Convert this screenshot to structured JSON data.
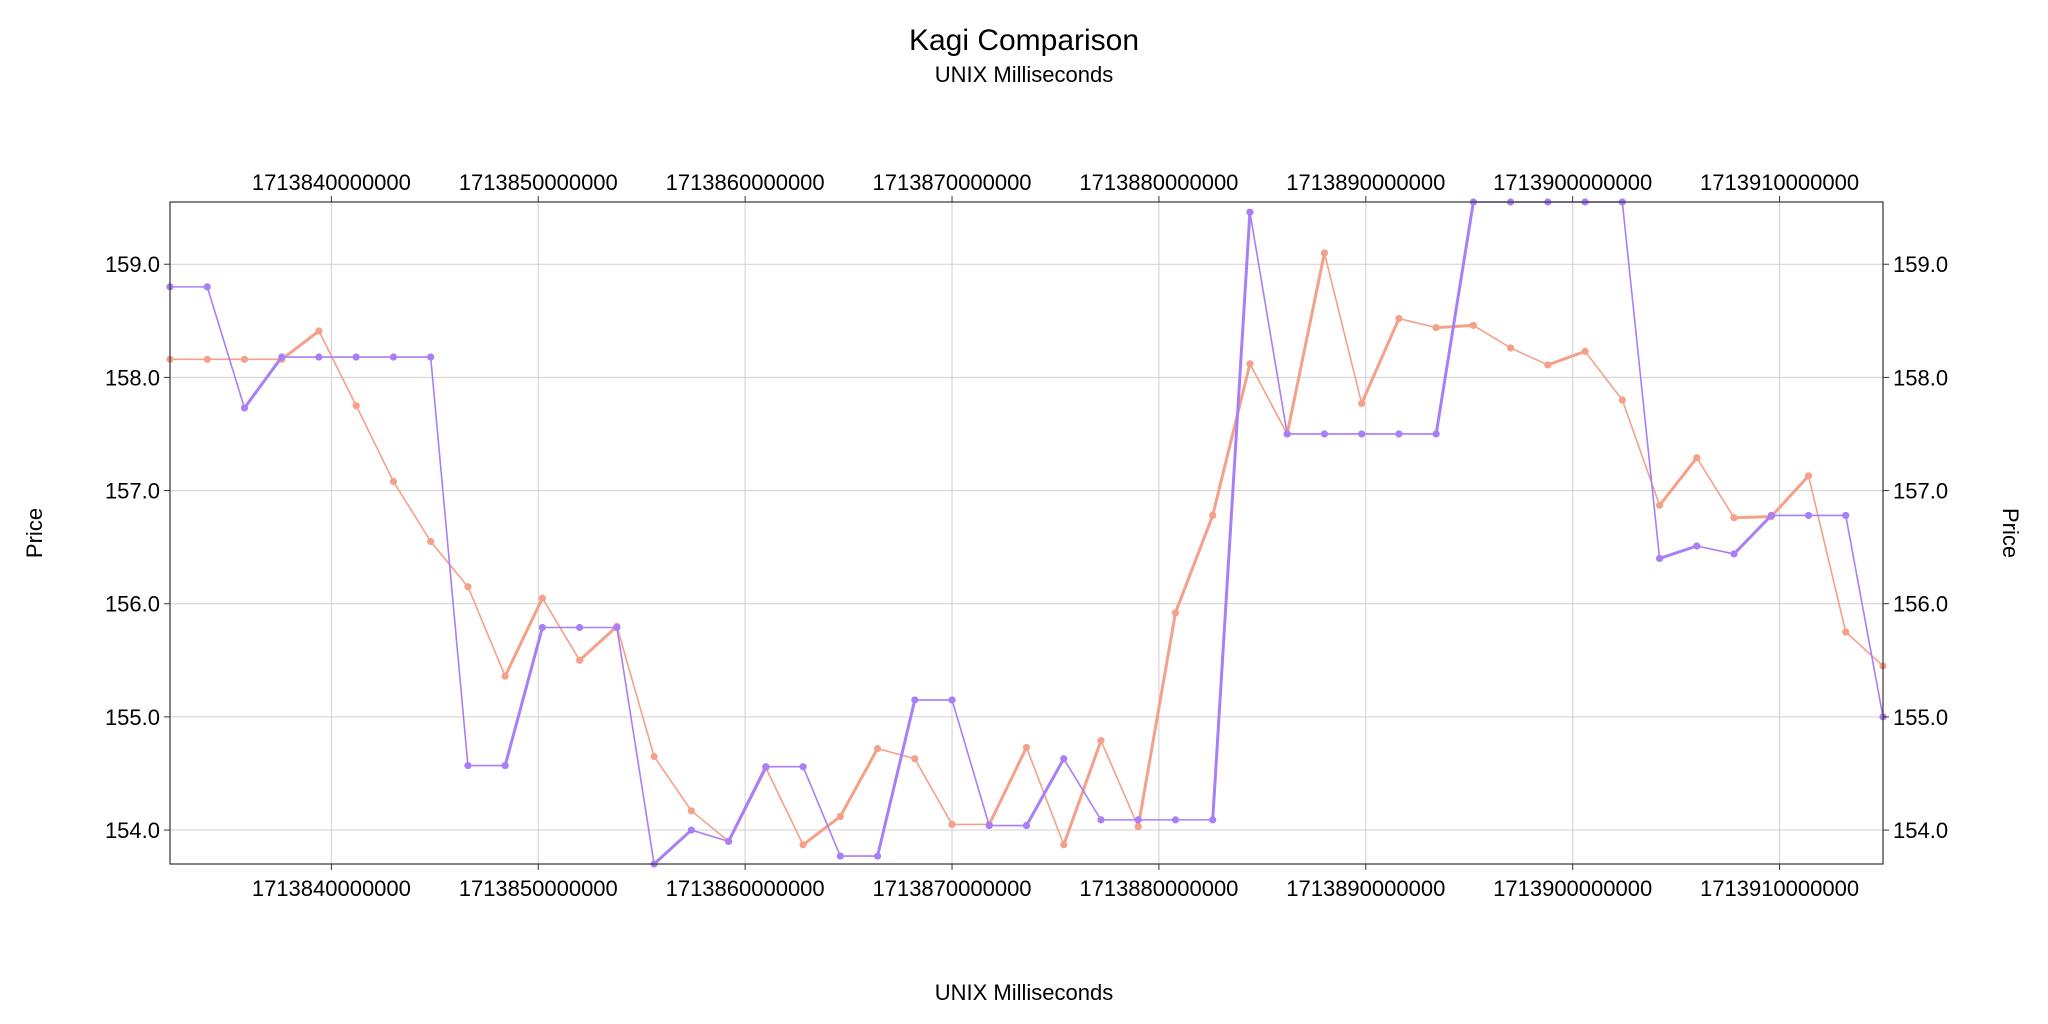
{
  "chart_data": {
    "type": "line",
    "title": "Kagi Comparison",
    "subtitle": "UNIX Milliseconds",
    "xlabel": "UNIX Milliseconds",
    "ylabel": "Price",
    "ylabel_right": "Price",
    "xlim": [
      1713832200000,
      1713915000000
    ],
    "ylim": [
      153.7,
      159.55
    ],
    "x_ticks": [
      1713840000000,
      1713850000000,
      1713860000000,
      1713870000000,
      1713880000000,
      1713890000000,
      1713900000000,
      1713910000000
    ],
    "x_tick_labels": [
      "1713840000000",
      "1713850000000",
      "1713860000000",
      "1713870000000",
      "1713880000000",
      "1713890000000",
      "1713900000000",
      "1713910000000"
    ],
    "y_ticks": [
      154.0,
      155.0,
      156.0,
      157.0,
      158.0,
      159.0
    ],
    "y_tick_labels": [
      "154.0",
      "155.0",
      "156.0",
      "157.0",
      "158.0",
      "159.0"
    ],
    "grid": true,
    "colors": {
      "orange": "#f5a088",
      "purple": "#a97ff5"
    },
    "series": [
      {
        "color": "#f5a088",
        "points": [
          [
            1713832200000,
            158.16
          ],
          [
            1713834000000,
            158.16
          ],
          [
            1713835800000,
            158.16
          ],
          [
            1713837600000,
            158.16
          ],
          [
            1713839400000,
            158.41
          ],
          [
            1713841200000,
            157.75
          ],
          [
            1713843000000,
            157.08
          ],
          [
            1713844800000,
            156.55
          ],
          [
            1713846600000,
            156.15
          ],
          [
            1713848400000,
            155.36
          ],
          [
            1713850200000,
            156.05
          ],
          [
            1713852000000,
            155.5
          ],
          [
            1713853800000,
            155.8
          ],
          [
            1713855600000,
            154.65
          ],
          [
            1713857400000,
            154.17
          ],
          [
            1713859200000,
            153.9
          ],
          [
            1713861000000,
            154.55
          ],
          [
            1713862800000,
            153.87
          ],
          [
            1713864600000,
            154.12
          ],
          [
            1713866400000,
            154.72
          ],
          [
            1713868200000,
            154.63
          ],
          [
            1713870000000,
            154.05
          ],
          [
            1713871800000,
            154.05
          ],
          [
            1713873600000,
            154.73
          ],
          [
            1713875400000,
            153.87
          ],
          [
            1713877200000,
            154.79
          ],
          [
            1713879000000,
            154.03
          ],
          [
            1713880800000,
            155.92
          ],
          [
            1713882600000,
            156.78
          ],
          [
            1713884400000,
            158.12
          ],
          [
            1713886200000,
            157.5
          ],
          [
            1713888000000,
            159.1
          ],
          [
            1713889800000,
            157.77
          ],
          [
            1713891600000,
            158.52
          ],
          [
            1713893400000,
            158.44
          ],
          [
            1713895200000,
            158.46
          ],
          [
            1713897000000,
            158.26
          ],
          [
            1713898800000,
            158.11
          ],
          [
            1713900600000,
            158.23
          ],
          [
            1713902400000,
            157.8
          ],
          [
            1713904200000,
            156.87
          ],
          [
            1713906000000,
            157.29
          ],
          [
            1713907800000,
            156.76
          ],
          [
            1713909600000,
            156.77
          ],
          [
            1713911400000,
            157.13
          ],
          [
            1713913200000,
            155.75
          ],
          [
            1713915000000,
            155.45
          ]
        ]
      },
      {
        "color": "#a97ff5",
        "points": [
          [
            1713832200000,
            158.8
          ],
          [
            1713834000000,
            158.8
          ],
          [
            1713835800000,
            157.73
          ],
          [
            1713837600000,
            158.18
          ],
          [
            1713839400000,
            158.18
          ],
          [
            1713841200000,
            158.18
          ],
          [
            1713843000000,
            158.18
          ],
          [
            1713844800000,
            158.18
          ],
          [
            1713846600000,
            154.57
          ],
          [
            1713848400000,
            154.57
          ],
          [
            1713850200000,
            155.79
          ],
          [
            1713852000000,
            155.79
          ],
          [
            1713853800000,
            155.79
          ],
          [
            1713855600000,
            153.7
          ],
          [
            1713857400000,
            154.0
          ],
          [
            1713859200000,
            153.9
          ],
          [
            1713861000000,
            154.56
          ],
          [
            1713862800000,
            154.56
          ],
          [
            1713864600000,
            153.77
          ],
          [
            1713866400000,
            153.77
          ],
          [
            1713868200000,
            155.15
          ],
          [
            1713870000000,
            155.15
          ],
          [
            1713871800000,
            154.04
          ],
          [
            1713873600000,
            154.04
          ],
          [
            1713875400000,
            154.63
          ],
          [
            1713877200000,
            154.09
          ],
          [
            1713879000000,
            154.09
          ],
          [
            1713880800000,
            154.09
          ],
          [
            1713882600000,
            154.09
          ],
          [
            1713884400000,
            159.46
          ],
          [
            1713886200000,
            157.5
          ],
          [
            1713888000000,
            157.5
          ],
          [
            1713889800000,
            157.5
          ],
          [
            1713891600000,
            157.5
          ],
          [
            1713893400000,
            157.5
          ],
          [
            1713895200000,
            159.55
          ],
          [
            1713897000000,
            159.55
          ],
          [
            1713898800000,
            159.55
          ],
          [
            1713900600000,
            159.55
          ],
          [
            1713902400000,
            159.55
          ],
          [
            1713904200000,
            156.4
          ],
          [
            1713906000000,
            156.51
          ],
          [
            1713907800000,
            156.44
          ],
          [
            1713909600000,
            156.78
          ],
          [
            1713911400000,
            156.78
          ],
          [
            1713913200000,
            156.78
          ],
          [
            1713915000000,
            155.0
          ]
        ]
      }
    ]
  }
}
